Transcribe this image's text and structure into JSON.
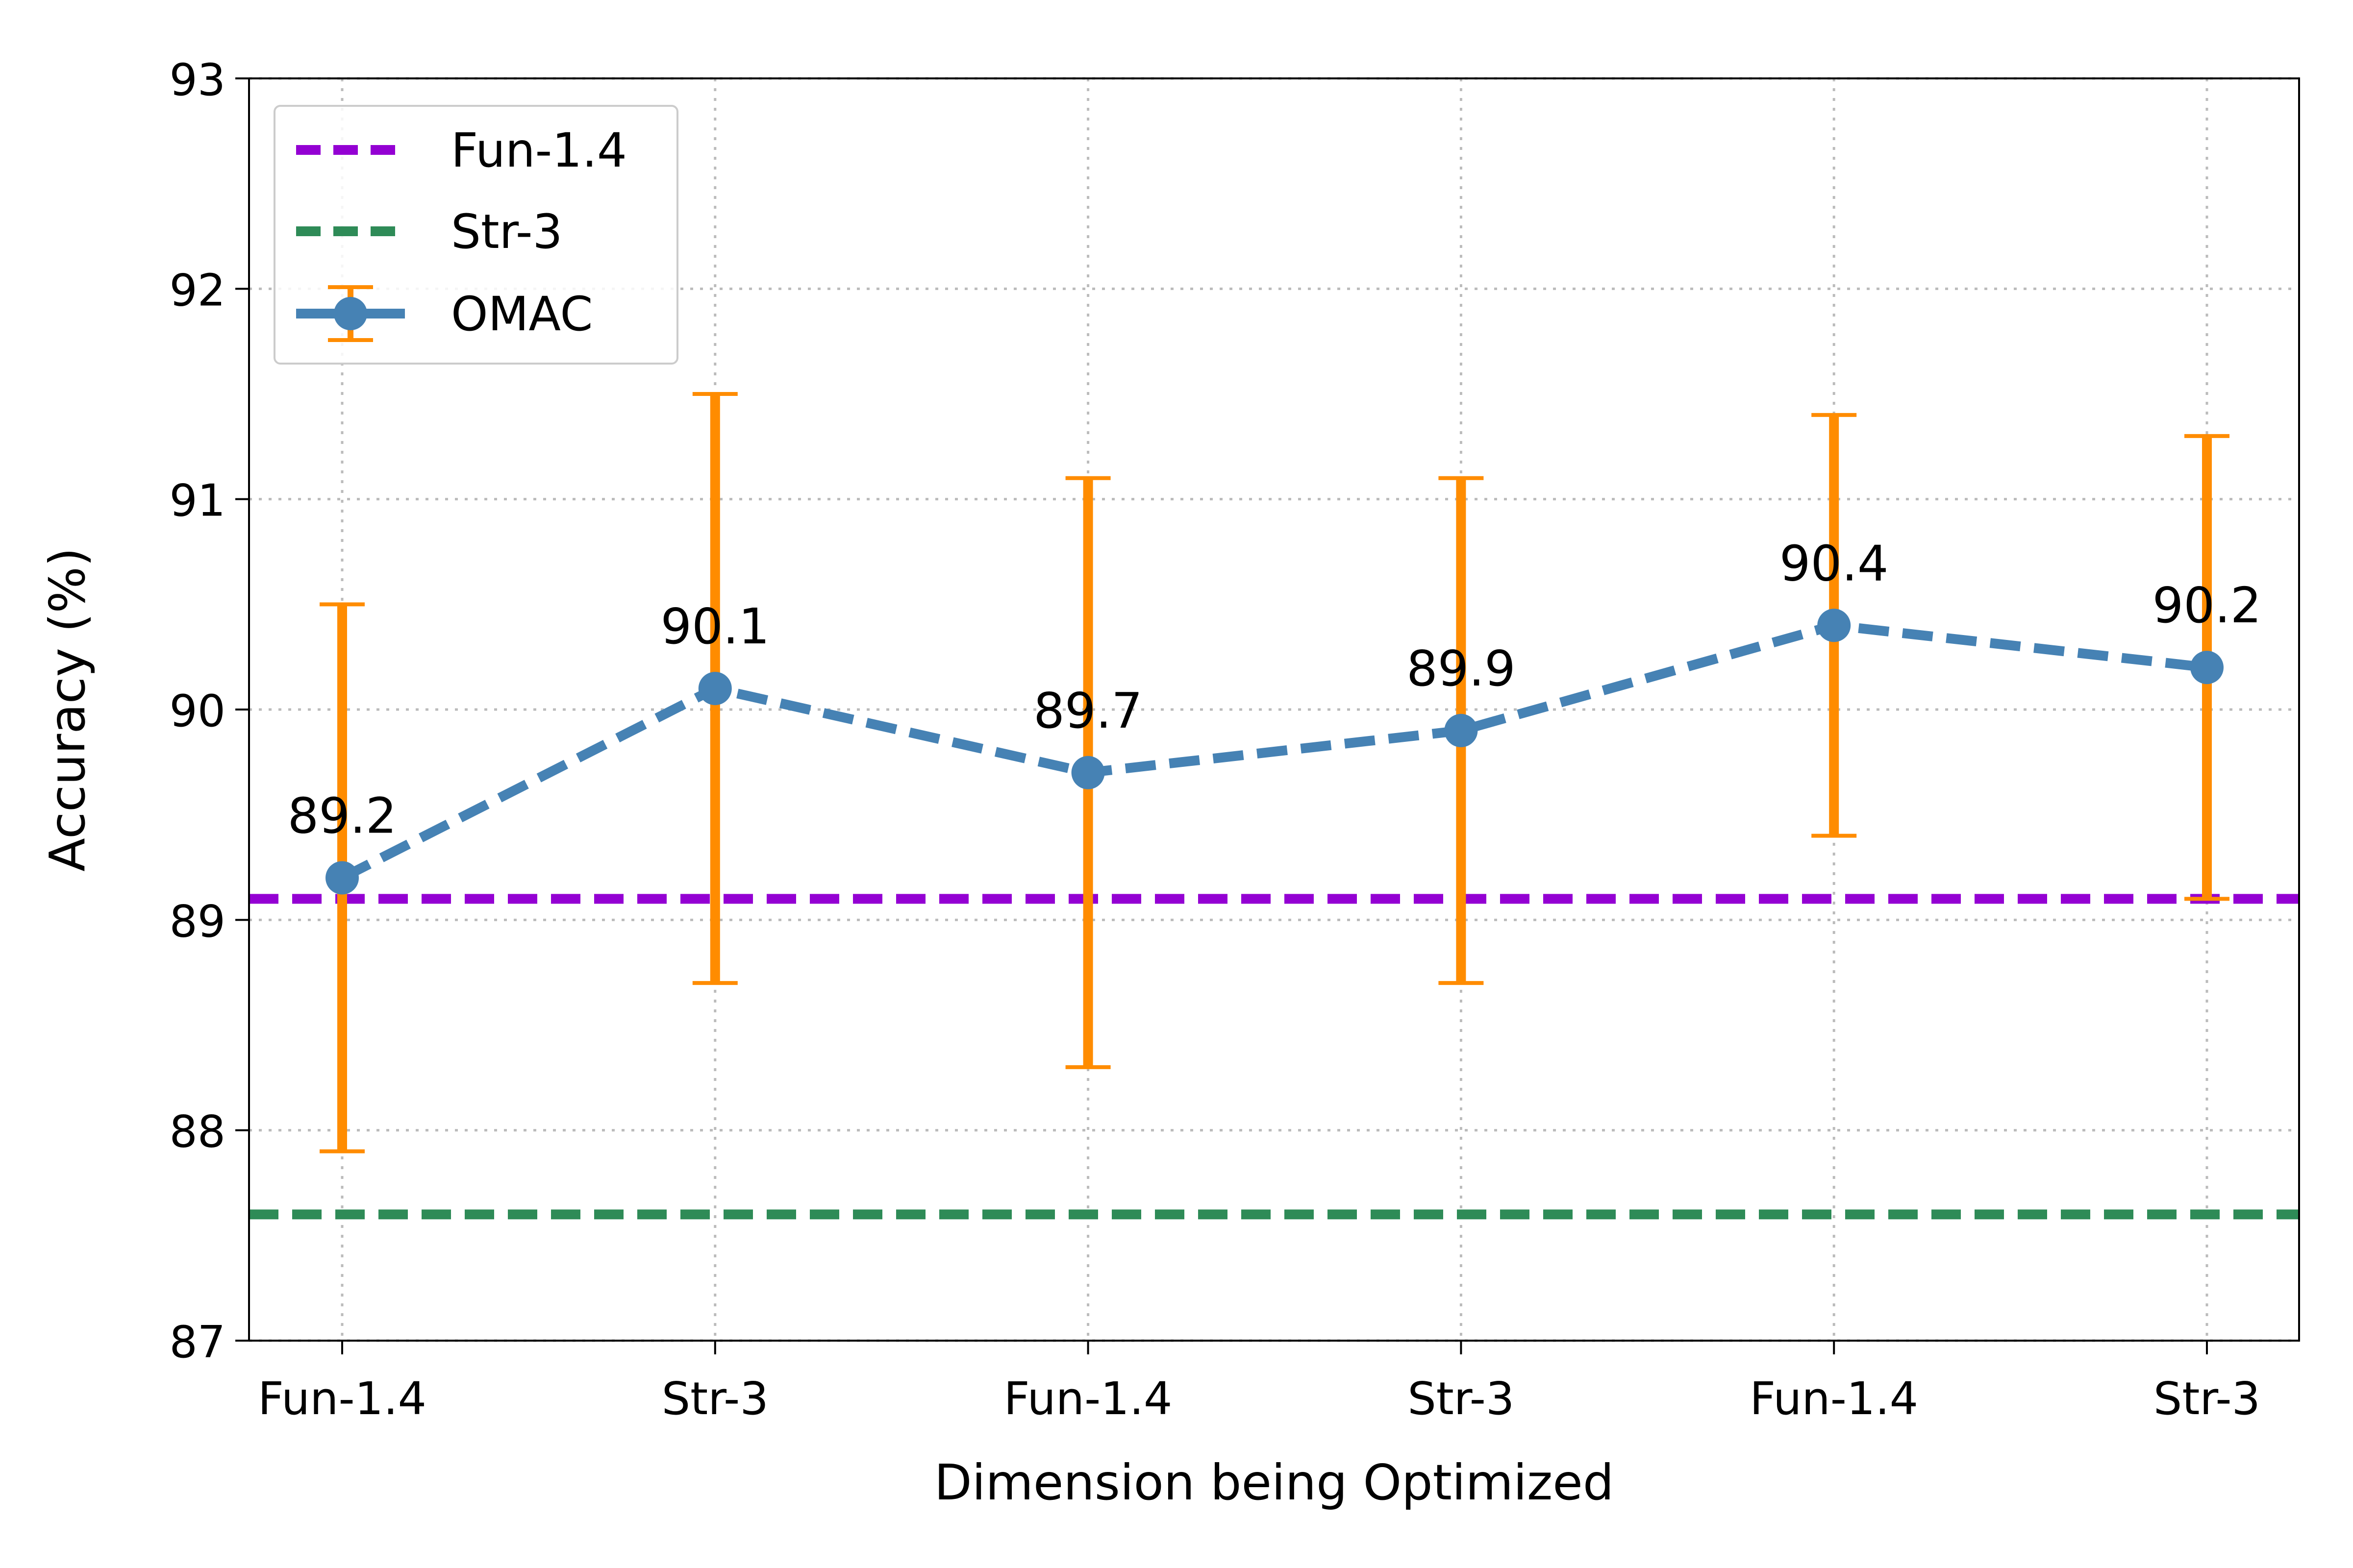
{
  "chart_data": {
    "type": "line",
    "title": "",
    "xlabel": "Dimension being Optimized",
    "ylabel": "Accuracy (%)",
    "ylim": [
      87,
      93
    ],
    "yticks": [
      87,
      88,
      89,
      90,
      91,
      92,
      93
    ],
    "categories": [
      "Fun-1.4",
      "Str-3",
      "Fun-1.4",
      "Str-3",
      "Fun-1.4",
      "Str-3"
    ],
    "grid": true,
    "legend_position": "top-left",
    "series": [
      {
        "name": "OMAC",
        "values": [
          89.2,
          90.1,
          89.7,
          89.9,
          90.4,
          90.2
        ],
        "err_low": [
          87.9,
          88.7,
          88.3,
          88.7,
          89.4,
          89.1
        ],
        "err_high": [
          90.5,
          91.5,
          91.1,
          91.1,
          91.4,
          91.3
        ],
        "data_labels": [
          "89.2",
          "90.1",
          "89.7",
          "89.9",
          "90.4",
          "90.2"
        ],
        "color": "#4682b4",
        "error_color": "#ff8c00"
      }
    ],
    "reference_lines": [
      {
        "name": "Fun-1.4",
        "value": 89.1,
        "color": "#9400d3"
      },
      {
        "name": "Str-3",
        "value": 87.6,
        "color": "#2e8b57"
      }
    ]
  }
}
